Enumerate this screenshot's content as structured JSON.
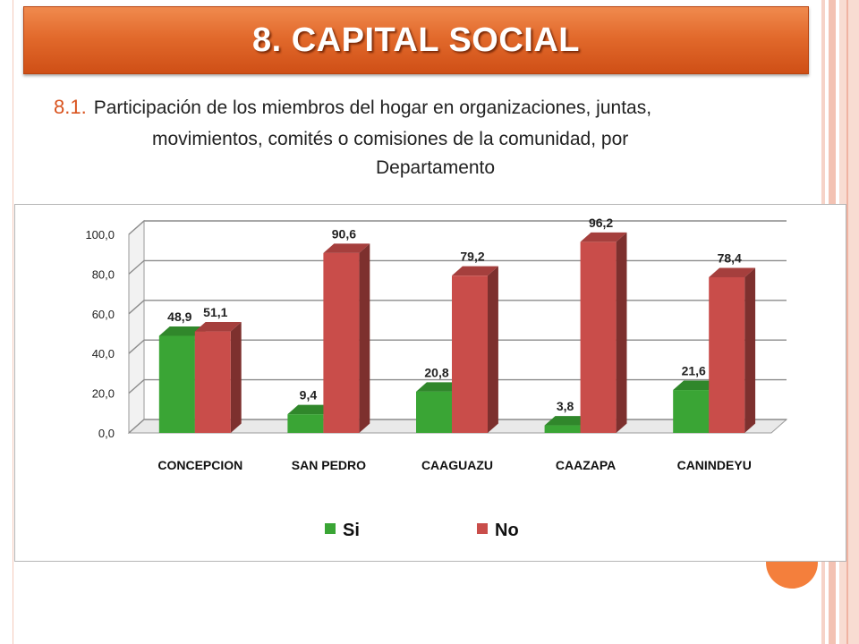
{
  "slide": {
    "title": "8. CAPITAL SOCIAL",
    "subtitle_number": "8.1.",
    "subtitle_line1": "Participación de los miembros del hogar en organizaciones, juntas,",
    "subtitle_line2": "movimientos, comités o comisiones de la comunidad, por",
    "subtitle_line3": "Departamento"
  },
  "chart_data": {
    "type": "bar",
    "style": "3d-clustered",
    "categories": [
      "CONCEPCION",
      "SAN PEDRO",
      "CAAGUAZU",
      "CAAZAPA",
      "CANINDEYU"
    ],
    "series": [
      {
        "name": "Si",
        "values": [
          48.9,
          9.4,
          20.8,
          3.8,
          21.6
        ],
        "labels": [
          "48,9",
          "9,4",
          "20,8",
          "3,8",
          "21,6"
        ],
        "color": "#3aa535"
      },
      {
        "name": "No",
        "values": [
          51.1,
          90.6,
          79.2,
          96.2,
          78.4
        ],
        "labels": [
          "51,1",
          "90,6",
          "79,2",
          "96,2",
          "78,4"
        ],
        "color": "#c94d4a"
      }
    ],
    "y_ticks": [
      "0,0",
      "20,0",
      "40,0",
      "60,0",
      "80,0",
      "100,0"
    ],
    "ylim": [
      0,
      100
    ],
    "grid": true,
    "legend_position": "bottom",
    "colors": {
      "si": "#3aa535",
      "no": "#c94d4a"
    }
  }
}
